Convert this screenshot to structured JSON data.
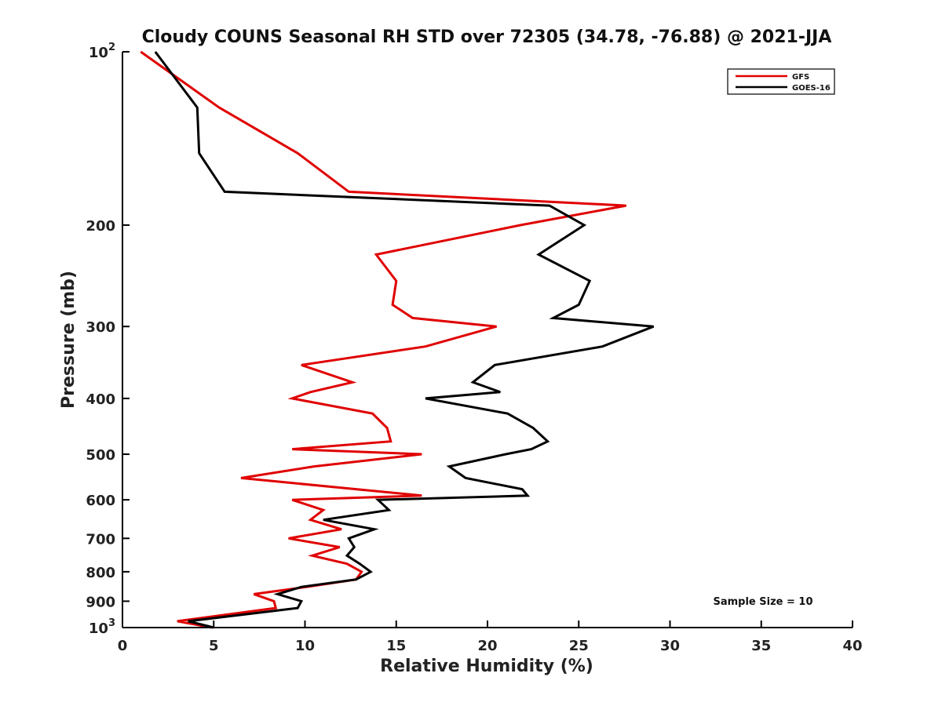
{
  "chart_data": {
    "type": "line",
    "title": "Cloudy COUNS Seasonal RH STD over 72305 (34.78, -76.88) @ 2021-JJA",
    "xlabel": "Relative Humidity (%)",
    "ylabel": "Pressure (mb)",
    "xlim": [
      0,
      40
    ],
    "ylim": [
      100,
      1000
    ],
    "yscale": "log",
    "y_reversed": true,
    "xticks": [
      0,
      5,
      10,
      15,
      20,
      25,
      30,
      35,
      40
    ],
    "xtick_labels": [
      "0",
      "5",
      "10",
      "15",
      "20",
      "25",
      "30",
      "35",
      "40"
    ],
    "yticks": [
      {
        "value": 100,
        "base": "10",
        "exp": "2"
      },
      {
        "value": 200,
        "label": "200"
      },
      {
        "value": 300,
        "label": "300"
      },
      {
        "value": 400,
        "label": "400"
      },
      {
        "value": 500,
        "label": "500"
      },
      {
        "value": 600,
        "label": "600"
      },
      {
        "value": 700,
        "label": "700"
      },
      {
        "value": 800,
        "label": "800"
      },
      {
        "value": 900,
        "label": "900"
      },
      {
        "value": 1000,
        "base": "10",
        "exp": "3"
      }
    ],
    "legend": {
      "position": "top-right"
    },
    "annotation": "Sample Size = 10",
    "series": [
      {
        "name": "GFS",
        "color": "#e00000",
        "points": [
          [
            1.0,
            100
          ],
          [
            5.3,
            125
          ],
          [
            9.6,
            150
          ],
          [
            12.4,
            175
          ],
          [
            27.6,
            185
          ],
          [
            21.8,
            200
          ],
          [
            13.9,
            225
          ],
          [
            15.0,
            250
          ],
          [
            14.8,
            275
          ],
          [
            15.9,
            290
          ],
          [
            20.5,
            300
          ],
          [
            16.6,
            325
          ],
          [
            9.8,
            350
          ],
          [
            12.6,
            375
          ],
          [
            10.3,
            390
          ],
          [
            9.3,
            400
          ],
          [
            13.7,
            425
          ],
          [
            14.5,
            450
          ],
          [
            14.7,
            475
          ],
          [
            9.3,
            490
          ],
          [
            16.4,
            500
          ],
          [
            10.5,
            525
          ],
          [
            6.5,
            550
          ],
          [
            12.8,
            575
          ],
          [
            16.4,
            590
          ],
          [
            9.3,
            600
          ],
          [
            11.0,
            625
          ],
          [
            10.3,
            650
          ],
          [
            12.0,
            675
          ],
          [
            9.1,
            700
          ],
          [
            11.9,
            725
          ],
          [
            10.4,
            750
          ],
          [
            12.3,
            775
          ],
          [
            13.1,
            800
          ],
          [
            12.8,
            825
          ],
          [
            10.1,
            850
          ],
          [
            7.2,
            875
          ],
          [
            8.3,
            900
          ],
          [
            8.4,
            925
          ],
          [
            3.0,
            975
          ],
          [
            4.9,
            1000
          ]
        ]
      },
      {
        "name": "GOES-16",
        "color": "#000000",
        "points": [
          [
            1.8,
            100
          ],
          [
            4.1,
            125
          ],
          [
            4.2,
            150
          ],
          [
            5.6,
            175
          ],
          [
            23.4,
            185
          ],
          [
            25.3,
            200
          ],
          [
            22.8,
            225
          ],
          [
            25.6,
            250
          ],
          [
            25.0,
            275
          ],
          [
            23.6,
            290
          ],
          [
            29.1,
            300
          ],
          [
            26.3,
            325
          ],
          [
            20.4,
            350
          ],
          [
            19.2,
            375
          ],
          [
            20.7,
            390
          ],
          [
            16.6,
            400
          ],
          [
            21.1,
            425
          ],
          [
            22.5,
            450
          ],
          [
            23.3,
            475
          ],
          [
            22.4,
            490
          ],
          [
            21.0,
            500
          ],
          [
            17.9,
            525
          ],
          [
            18.8,
            550
          ],
          [
            21.9,
            575
          ],
          [
            22.2,
            590
          ],
          [
            14.0,
            600
          ],
          [
            14.6,
            625
          ],
          [
            11.0,
            650
          ],
          [
            13.8,
            675
          ],
          [
            12.4,
            700
          ],
          [
            12.7,
            725
          ],
          [
            12.3,
            750
          ],
          [
            13.0,
            775
          ],
          [
            13.6,
            800
          ],
          [
            12.8,
            825
          ],
          [
            9.8,
            850
          ],
          [
            8.5,
            875
          ],
          [
            9.8,
            900
          ],
          [
            9.6,
            925
          ],
          [
            3.6,
            975
          ],
          [
            5.0,
            1000
          ]
        ]
      }
    ]
  }
}
